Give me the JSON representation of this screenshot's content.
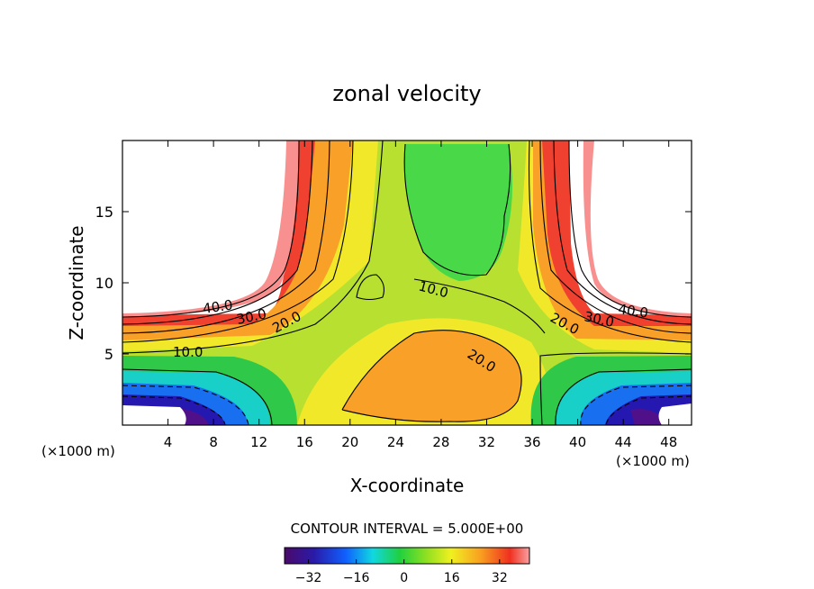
{
  "chart_data": {
    "type": "contour",
    "title": "zonal velocity",
    "xlabel": "X-coordinate",
    "ylabel": "Z-coordinate",
    "x_unit_left": "(×1000 m)",
    "x_unit_right": "(×1000 m)",
    "xlim": [
      0,
      50
    ],
    "ylim": [
      0,
      20
    ],
    "x_ticks": [
      4,
      8,
      12,
      16,
      20,
      24,
      28,
      32,
      36,
      40,
      44,
      48
    ],
    "y_ticks": [
      5,
      10,
      15
    ],
    "contour_interval_text": "CONTOUR INTERVAL = 5.000E+00",
    "contour_labels": [
      "40.0",
      "30.0",
      "20.0",
      "10.0",
      "10.0",
      "20.0",
      "20.0",
      "30.0",
      "40.0"
    ],
    "colorbar": {
      "ticks": [
        -32,
        -16,
        0,
        16,
        32
      ],
      "tick_labels": [
        "−32",
        "−16",
        "0",
        "16",
        "32"
      ],
      "range": [
        -40,
        42
      ]
    }
  }
}
